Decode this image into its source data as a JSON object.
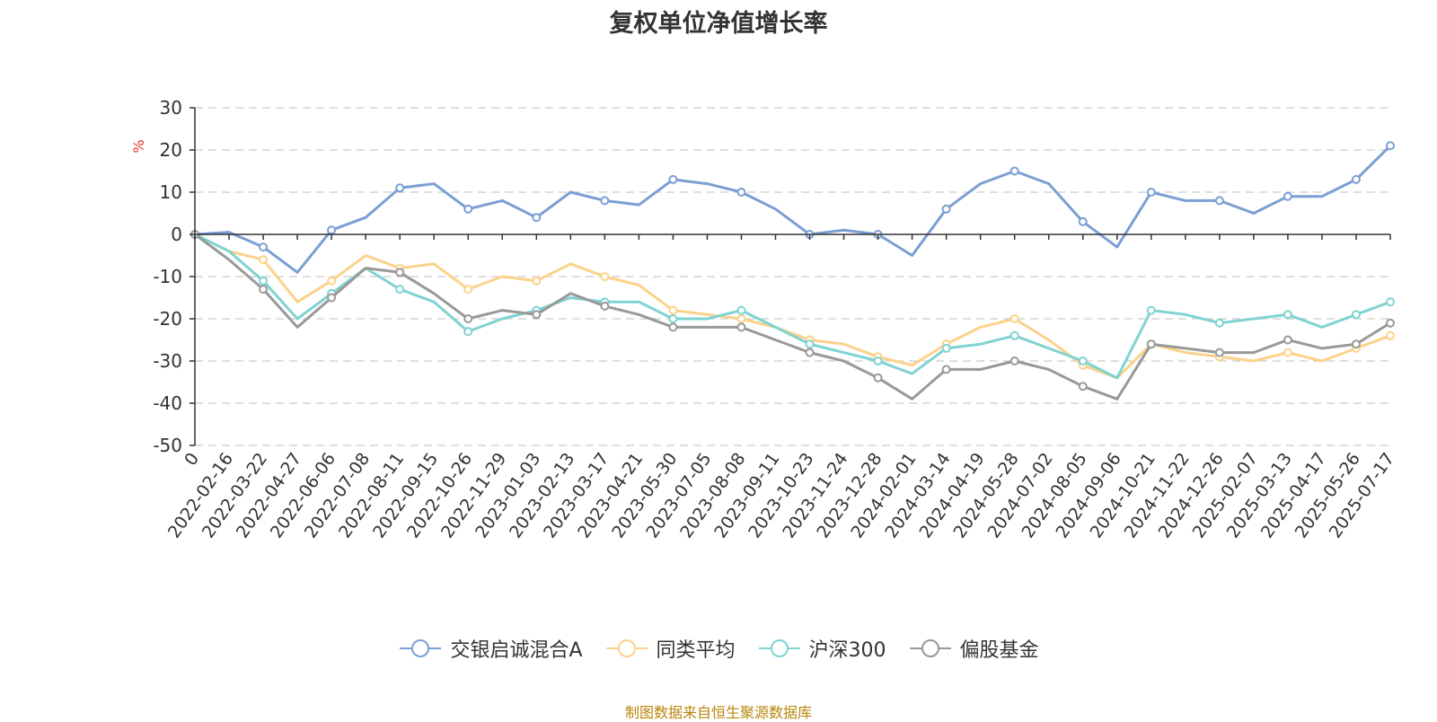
{
  "chart_data": {
    "type": "line",
    "title": "复权单位净值增长率",
    "ylabel": "%",
    "ylim": [
      -50,
      30
    ],
    "yticks": [
      30,
      20,
      10,
      0,
      -10,
      -20,
      -30,
      -40,
      -50
    ],
    "x_tick_labels": [
      "0",
      "2022-02-16",
      "2022-03-22",
      "2022-04-27",
      "2022-06-06",
      "2022-07-08",
      "2022-08-11",
      "2022-09-15",
      "2022-10-26",
      "2022-11-29",
      "2023-01-03",
      "2023-02-13",
      "2023-03-17",
      "2023-04-21",
      "2023-05-30",
      "2023-07-05",
      "2023-08-08",
      "2023-09-11",
      "2023-10-23",
      "2023-11-24",
      "2023-12-28",
      "2024-02-01",
      "2024-03-14",
      "2024-04-19",
      "2024-05-28",
      "2024-07-02",
      "2024-08-05",
      "2024-09-06",
      "2024-10-21",
      "2024-11-22",
      "2024-12-26",
      "2025-02-07",
      "2025-03-13",
      "2025-04-17",
      "2025-05-26",
      "2025-07-17"
    ],
    "grid": true,
    "legend_position": "bottom",
    "series": [
      {
        "name": "交银启诚混合A",
        "color": "#7b9fd4",
        "values": [
          0,
          0.5,
          -3,
          -9,
          1,
          4,
          11,
          12,
          6,
          8,
          4,
          10,
          8,
          7,
          13,
          12,
          10,
          6,
          0,
          1,
          0,
          -5,
          6,
          12,
          15,
          12,
          3,
          -3,
          10,
          8,
          8,
          5,
          9,
          9,
          13,
          21
        ]
      },
      {
        "name": "同类平均",
        "color": "#fcd28a",
        "values": [
          0,
          -4,
          -6,
          -16,
          -11,
          -5,
          -8,
          -7,
          -13,
          -10,
          -11,
          -7,
          -10,
          -12,
          -18,
          -19,
          -20,
          -22,
          -25,
          -26,
          -29,
          -31,
          -26,
          -22,
          -20,
          -25,
          -31,
          -34,
          -26,
          -28,
          -29,
          -30,
          -28,
          -30,
          -27,
          -24
        ]
      },
      {
        "name": "沪深300",
        "color": "#7fd3d2",
        "values": [
          0,
          -4,
          -11,
          -20,
          -14,
          -8,
          -13,
          -16,
          -23,
          -20,
          -18,
          -15,
          -16,
          -16,
          -20,
          -20,
          -18,
          -22,
          -26,
          -28,
          -30,
          -33,
          -27,
          -26,
          -24,
          -27,
          -30,
          -34,
          -18,
          -19,
          -21,
          -20,
          -19,
          -22,
          -19,
          -16
        ]
      },
      {
        "name": "偏股基金",
        "color": "#999999",
        "values": [
          0,
          -6,
          -13,
          -22,
          -15,
          -8,
          -9,
          -14,
          -20,
          -18,
          -19,
          -14,
          -17,
          -19,
          -22,
          -22,
          -22,
          -25,
          -28,
          -30,
          -34,
          -39,
          -32,
          -32,
          -30,
          -32,
          -36,
          -39,
          -26,
          -27,
          -28,
          -28,
          -25,
          -27,
          -26,
          -21
        ]
      }
    ]
  },
  "legend": {
    "items": [
      "交银启诚混合A",
      "同类平均",
      "沪深300",
      "偏股基金"
    ]
  },
  "footer": {
    "source": "制图数据来自恒生聚源数据库"
  }
}
